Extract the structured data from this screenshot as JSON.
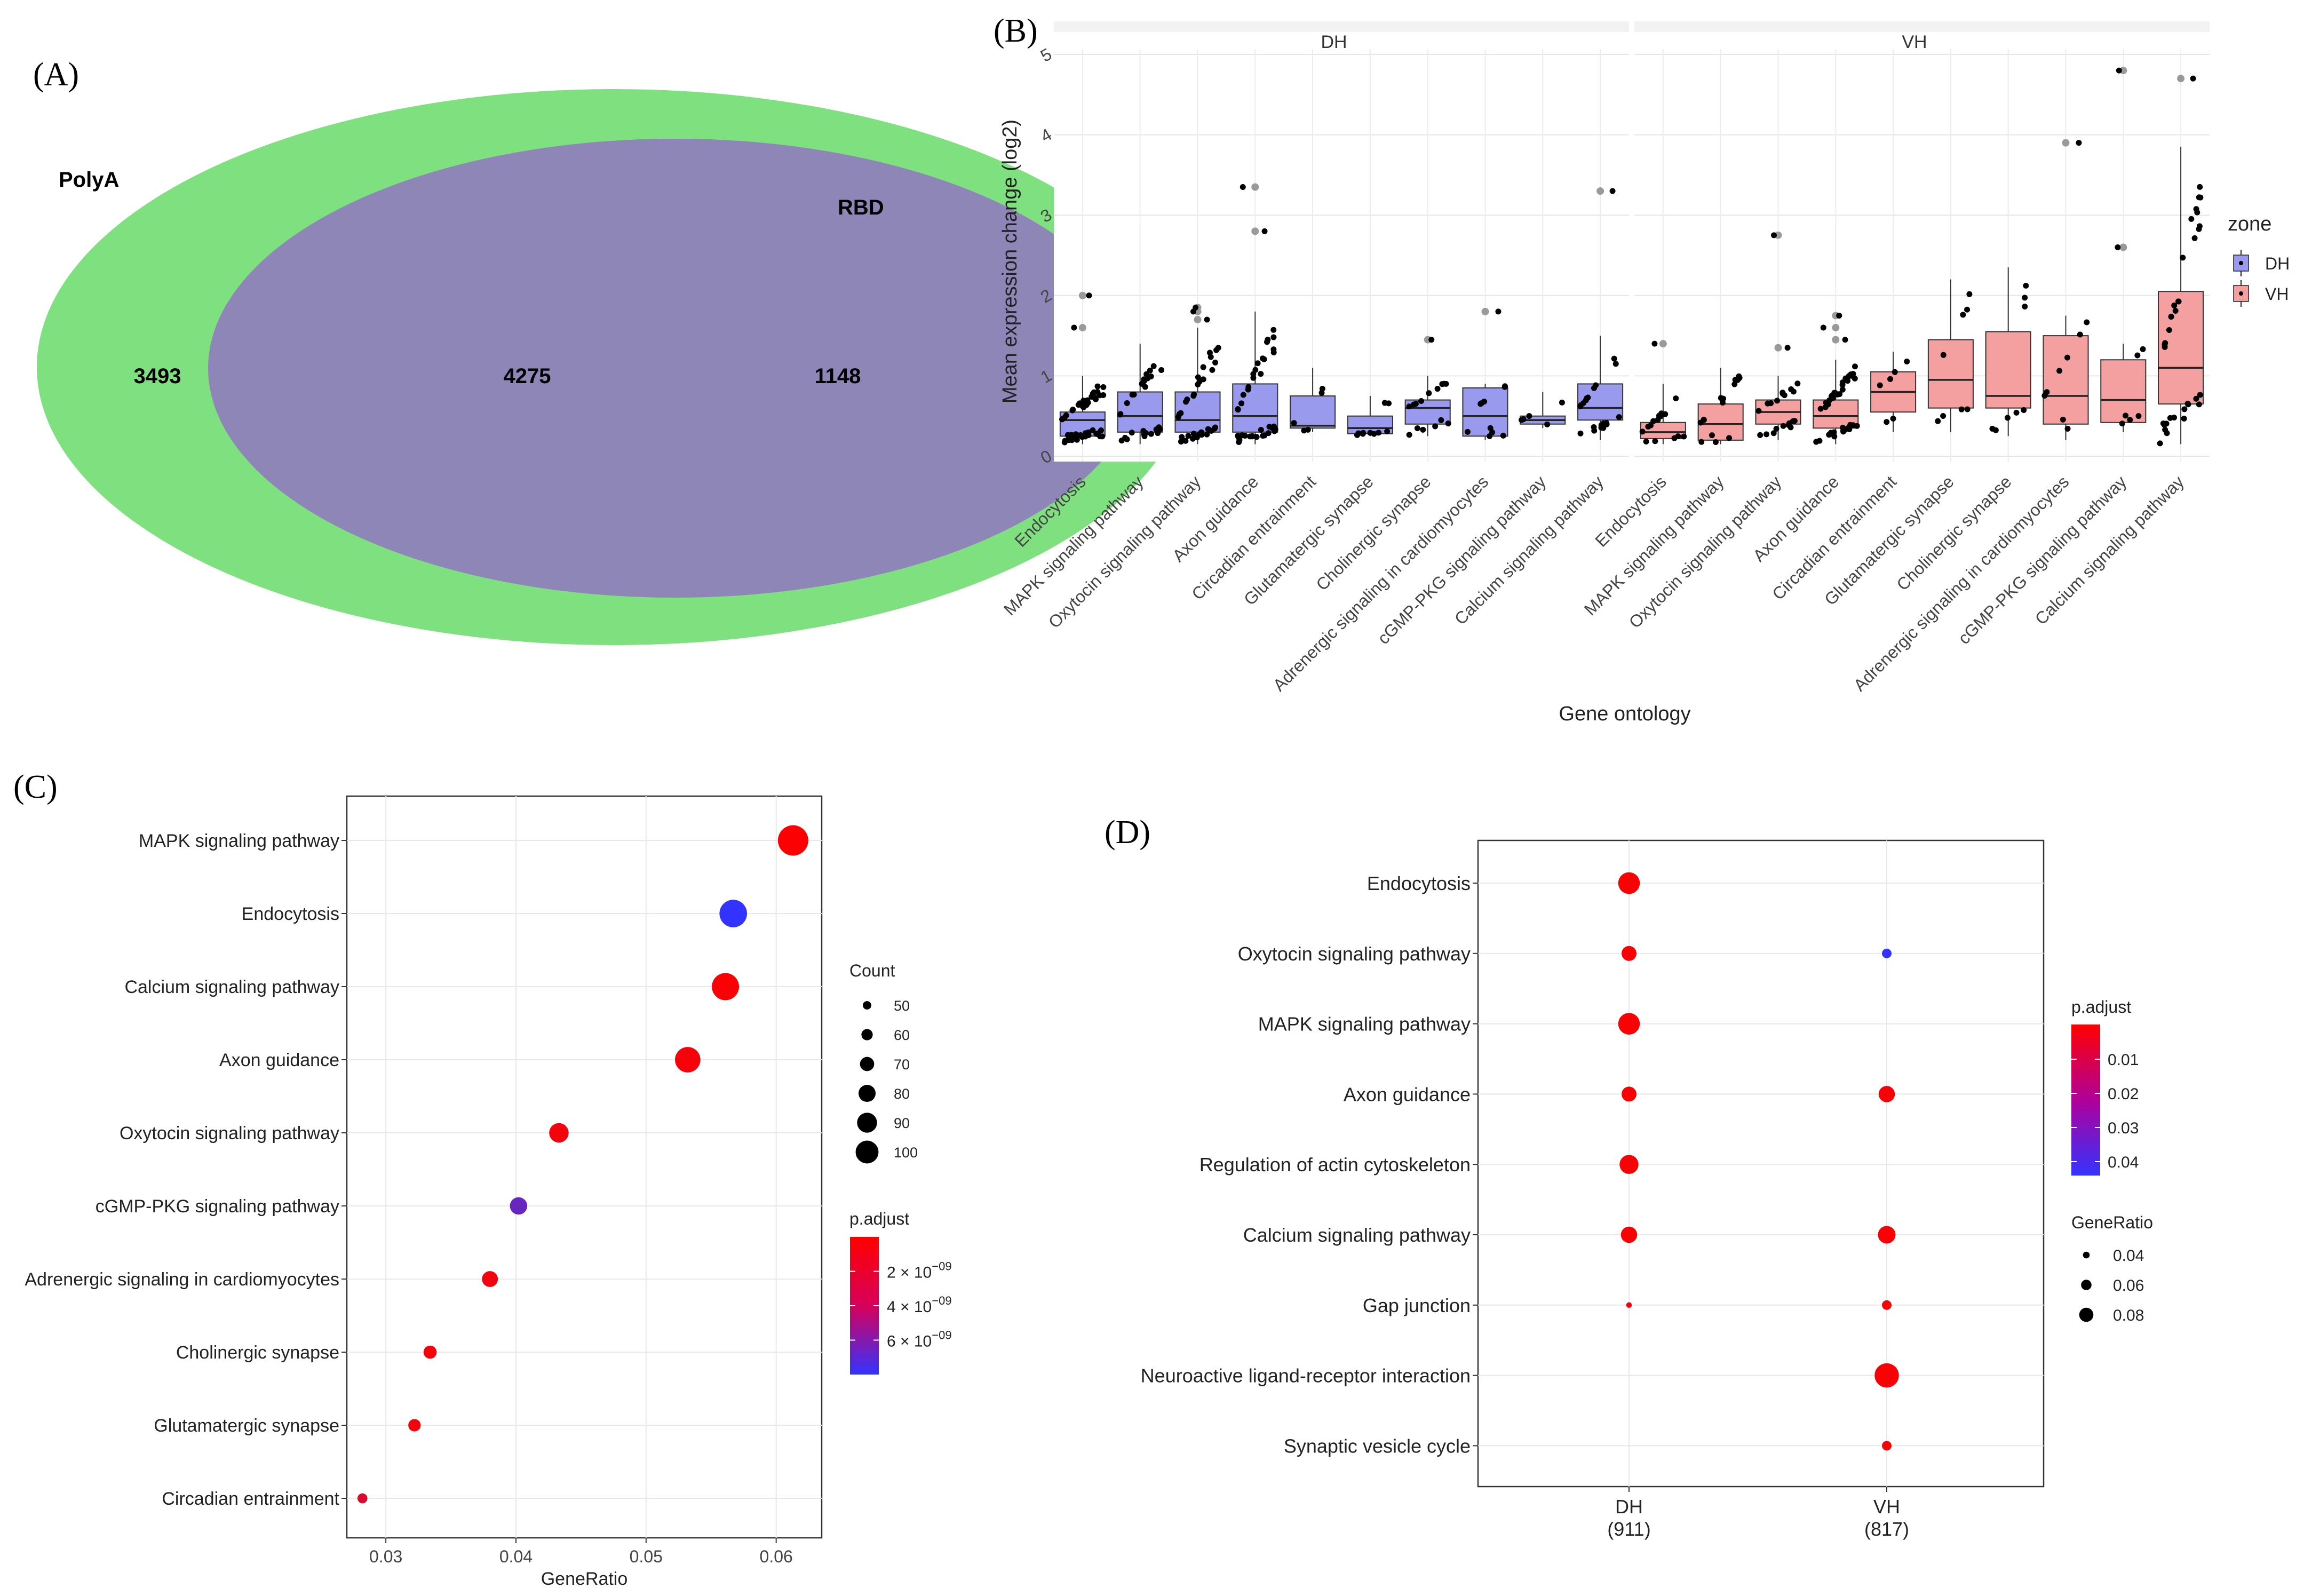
{
  "panels": {
    "A": "(A)",
    "B": "(B)",
    "C": "(C)",
    "D": "(D)"
  },
  "chart_data": [
    {
      "type": "venn",
      "panel": "A",
      "sets": [
        {
          "name": "PolyA",
          "only": 3493,
          "color": "#7fe07f"
        },
        {
          "name": "RBD",
          "only": 1148,
          "color": "#cc8af2"
        }
      ],
      "intersection": 4275,
      "overlap_color": "#8f86b8"
    },
    {
      "type": "boxplot",
      "panel": "B",
      "facets": [
        "DH",
        "VH"
      ],
      "categories": [
        "Endocytosis",
        "MAPK signaling pathway",
        "Oxytocin signaling pathway",
        "Axon guidance",
        "Circadian entrainment",
        "Glutamatergic synapse",
        "Cholinergic synapse",
        "Adrenergic signaling in cardiomyocytes",
        "cGMP-PKG signaling pathway",
        "Calcium signaling pathway"
      ],
      "ylabel": "Mean expression change (log2)",
      "xlabel": "Gene ontology",
      "ylim": [
        0,
        5
      ],
      "yticks": [
        0,
        1,
        2,
        3,
        4,
        5
      ],
      "legend": {
        "title": "zone",
        "entries": [
          {
            "name": "DH",
            "color": "#9999ee"
          },
          {
            "name": "VH",
            "color": "#f4a0a0"
          }
        ]
      },
      "series": [
        {
          "name": "DH",
          "boxes": [
            {
              "q1": 0.25,
              "med": 0.45,
              "q3": 0.55,
              "lo": 0.15,
              "hi": 1.0,
              "out": [
                1.6,
                2.0
              ],
              "n": 55
            },
            {
              "q1": 0.3,
              "med": 0.5,
              "q3": 0.8,
              "lo": 0.15,
              "hi": 1.4,
              "out": [],
              "n": 30
            },
            {
              "q1": 0.3,
              "med": 0.45,
              "q3": 0.8,
              "lo": 0.15,
              "hi": 1.6,
              "out": [
                1.7,
                1.8,
                1.85
              ],
              "n": 35
            },
            {
              "q1": 0.3,
              "med": 0.5,
              "q3": 0.9,
              "lo": 0.15,
              "hi": 1.8,
              "out": [
                2.8,
                3.35
              ],
              "n": 40
            },
            {
              "q1": 0.35,
              "med": 0.38,
              "q3": 0.75,
              "lo": 0.3,
              "hi": 1.1,
              "out": [],
              "n": 5
            },
            {
              "q1": 0.28,
              "med": 0.35,
              "q3": 0.5,
              "lo": 0.25,
              "hi": 0.75,
              "out": [],
              "n": 10
            },
            {
              "q1": 0.4,
              "med": 0.6,
              "q3": 0.7,
              "lo": 0.25,
              "hi": 1.0,
              "out": [
                1.45
              ],
              "n": 15
            },
            {
              "q1": 0.25,
              "med": 0.5,
              "q3": 0.85,
              "lo": 0.2,
              "hi": 0.9,
              "out": [
                1.8
              ],
              "n": 10
            },
            {
              "q1": 0.4,
              "med": 0.45,
              "q3": 0.5,
              "lo": 0.35,
              "hi": 0.8,
              "out": [],
              "n": 5
            },
            {
              "q1": 0.45,
              "med": 0.6,
              "q3": 0.9,
              "lo": 0.2,
              "hi": 1.5,
              "out": [
                3.3
              ],
              "n": 20
            }
          ]
        },
        {
          "name": "VH",
          "boxes": [
            {
              "q1": 0.22,
              "med": 0.3,
              "q3": 0.42,
              "lo": 0.15,
              "hi": 0.9,
              "out": [
                1.4
              ],
              "n": 15
            },
            {
              "q1": 0.2,
              "med": 0.4,
              "q3": 0.65,
              "lo": 0.15,
              "hi": 1.1,
              "out": [],
              "n": 15
            },
            {
              "q1": 0.4,
              "med": 0.55,
              "q3": 0.7,
              "lo": 0.2,
              "hi": 1.0,
              "out": [
                1.35,
                2.75
              ],
              "n": 20
            },
            {
              "q1": 0.35,
              "med": 0.5,
              "q3": 0.7,
              "lo": 0.15,
              "hi": 1.2,
              "out": [
                1.45,
                1.6,
                1.75
              ],
              "n": 40
            },
            {
              "q1": 0.55,
              "med": 0.8,
              "q3": 1.05,
              "lo": 0.3,
              "hi": 1.3,
              "out": [],
              "n": 6
            },
            {
              "q1": 0.6,
              "med": 0.95,
              "q3": 1.45,
              "lo": 0.3,
              "hi": 2.2,
              "out": [],
              "n": 8
            },
            {
              "q1": 0.6,
              "med": 0.75,
              "q3": 1.55,
              "lo": 0.25,
              "hi": 2.35,
              "out": [],
              "n": 8
            },
            {
              "q1": 0.4,
              "med": 0.75,
              "q3": 1.5,
              "lo": 0.2,
              "hi": 1.75,
              "out": [
                3.9
              ],
              "n": 8
            },
            {
              "q1": 0.42,
              "med": 0.7,
              "q3": 1.2,
              "lo": 0.3,
              "hi": 1.4,
              "out": [
                2.6,
                4.8
              ],
              "n": 6
            },
            {
              "q1": 0.65,
              "med": 1.1,
              "q3": 2.05,
              "lo": 0.15,
              "hi": 3.85,
              "out": [
                4.7
              ],
              "n": 35
            }
          ]
        }
      ]
    },
    {
      "type": "scatter",
      "panel": "C",
      "categories": [
        "MAPK signaling pathway",
        "Endocytosis",
        "Calcium signaling pathway",
        "Axon guidance",
        "Oxytocin signaling pathway",
        "cGMP-PKG signaling pathway",
        "Adrenergic signaling in cardiomyocytes",
        "Cholinergic synapse",
        "Glutamatergic synapse",
        "Circadian entrainment"
      ],
      "x": [
        0.0613,
        0.0567,
        0.0561,
        0.0532,
        0.0433,
        0.0402,
        0.038,
        0.0334,
        0.0322,
        0.0282
      ],
      "count": [
        107,
        99,
        98,
        93,
        76,
        70,
        66,
        58,
        56,
        49
      ],
      "padj": [
        1e-10,
        8e-09,
        2e-10,
        3e-10,
        4e-10,
        6e-09,
        5e-10,
        3e-10,
        4e-10,
        1.5e-09
      ],
      "xlabel": "GeneRatio",
      "xlim": [
        0.027,
        0.0635
      ],
      "xticks": [
        0.03,
        0.04,
        0.05,
        0.06
      ],
      "xtick_labels": [
        "0.03",
        "0.04",
        "0.05",
        "0.06"
      ],
      "legend_count": {
        "title": "Count",
        "values": [
          50,
          60,
          70,
          80,
          90,
          100
        ]
      },
      "legend_padj": {
        "title": "p.adjust",
        "ticks": [
          {
            "v": 2e-09,
            "mant": "2 × 10",
            "exp": "−09"
          },
          {
            "v": 4e-09,
            "mant": "4 × 10",
            "exp": "−09"
          },
          {
            "v": 6e-09,
            "mant": "6 × 10",
            "exp": "−09"
          }
        ],
        "range": [
          0,
          8e-09
        ]
      }
    },
    {
      "type": "scatter",
      "panel": "D",
      "categories": [
        "Endocytosis",
        "Oxytocin signaling pathway",
        "MAPK signaling pathway",
        "Axon guidance",
        "Regulation of actin cytoskeleton",
        "Calcium signaling pathway",
        "Gap junction",
        "Neuroactive ligand-receptor interaction",
        "Synaptic vesicle cycle"
      ],
      "groups": [
        {
          "name": "DH",
          "n": "(911)"
        },
        {
          "name": "VH",
          "n": "(817)"
        }
      ],
      "points": [
        {
          "cat": 0,
          "group": 0,
          "ratio": 0.085,
          "padj": 0.001
        },
        {
          "cat": 1,
          "group": 0,
          "ratio": 0.06,
          "padj": 0.001
        },
        {
          "cat": 1,
          "group": 1,
          "ratio": 0.04,
          "padj": 0.045
        },
        {
          "cat": 2,
          "group": 0,
          "ratio": 0.085,
          "padj": 0.001
        },
        {
          "cat": 3,
          "group": 0,
          "ratio": 0.06,
          "padj": 0.001
        },
        {
          "cat": 3,
          "group": 1,
          "ratio": 0.065,
          "padj": 0.001
        },
        {
          "cat": 4,
          "group": 0,
          "ratio": 0.075,
          "padj": 0.001
        },
        {
          "cat": 5,
          "group": 0,
          "ratio": 0.065,
          "padj": 0.001
        },
        {
          "cat": 5,
          "group": 1,
          "ratio": 0.07,
          "padj": 0.001
        },
        {
          "cat": 6,
          "group": 0,
          "ratio": 0.025,
          "padj": 0.001
        },
        {
          "cat": 6,
          "group": 1,
          "ratio": 0.04,
          "padj": 0.001
        },
        {
          "cat": 7,
          "group": 1,
          "ratio": 0.095,
          "padj": 0.001
        },
        {
          "cat": 8,
          "group": 1,
          "ratio": 0.04,
          "padj": 0.001
        }
      ],
      "legend_padj": {
        "title": "p.adjust",
        "ticks": [
          "0.01",
          "0.02",
          "0.03",
          "0.04"
        ]
      },
      "legend_ratio": {
        "title": "GeneRatio",
        "values": [
          "0.04",
          "0.06",
          "0.08"
        ]
      }
    }
  ]
}
